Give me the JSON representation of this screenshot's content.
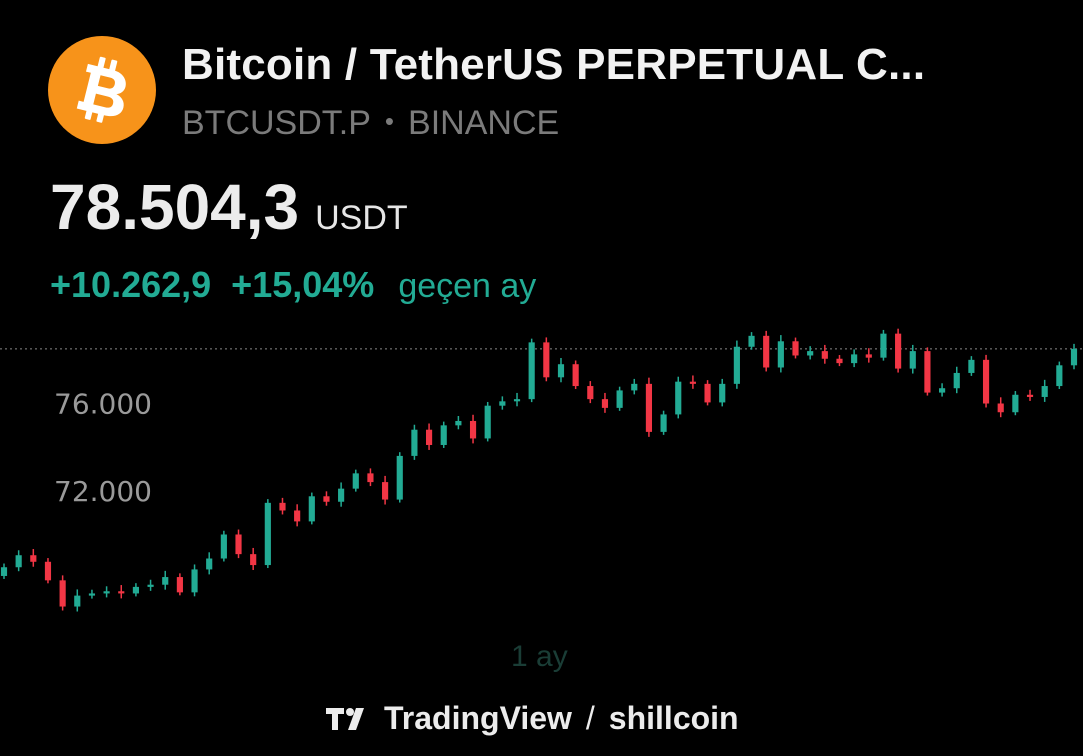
{
  "header": {
    "title": "Bitcoin / TetherUS PERPETUAL C...",
    "symbol": "BTCUSDT.P",
    "separator": "•",
    "exchange": "BINANCE",
    "logo_icon": "bitcoin-logo-icon",
    "logo_color": "#f7931a"
  },
  "quote": {
    "price": "78.504,3",
    "currency": "USDT",
    "change_abs": "+10.262,9",
    "change_pct": "+15,04%",
    "period": "geçen ay",
    "positive_color": "#22ab94"
  },
  "chart_data": {
    "type": "candlestick",
    "timeframe_label": "1 ay",
    "y_ticks": [
      {
        "value": 76000,
        "label": "76.000"
      },
      {
        "value": 72000,
        "label": "72.000"
      }
    ],
    "ylim": [
      65900,
      80100
    ],
    "last_price_line": 78504.3,
    "up_color": "#22ab94",
    "down_color": "#f23645",
    "closes": [
      68500,
      69050,
      68750,
      67900,
      66700,
      67200,
      67300,
      67400,
      67300,
      67600,
      67700,
      68050,
      67350,
      68400,
      68900,
      70000,
      69100,
      68600,
      71450,
      71100,
      70600,
      71750,
      71500,
      72100,
      72800,
      72400,
      71600,
      73600,
      74800,
      74100,
      75000,
      75200,
      74400,
      75900,
      76100,
      76200,
      78800,
      77200,
      77800,
      76800,
      76200,
      75800,
      76600,
      76900,
      74700,
      75500,
      77000,
      76900,
      76050,
      76900,
      78600,
      79100,
      77650,
      78850,
      78200,
      78400,
      78050,
      77850,
      78250,
      78100,
      79200,
      77600,
      78400,
      76500,
      76700,
      77400,
      78000,
      76000,
      75600,
      76400,
      76300,
      76800,
      77750,
      78504.3
    ]
  },
  "footer": {
    "brand": "TradingView",
    "separator": "/",
    "user": "shillcoin",
    "logo_icon": "tradingview-logo-icon"
  }
}
